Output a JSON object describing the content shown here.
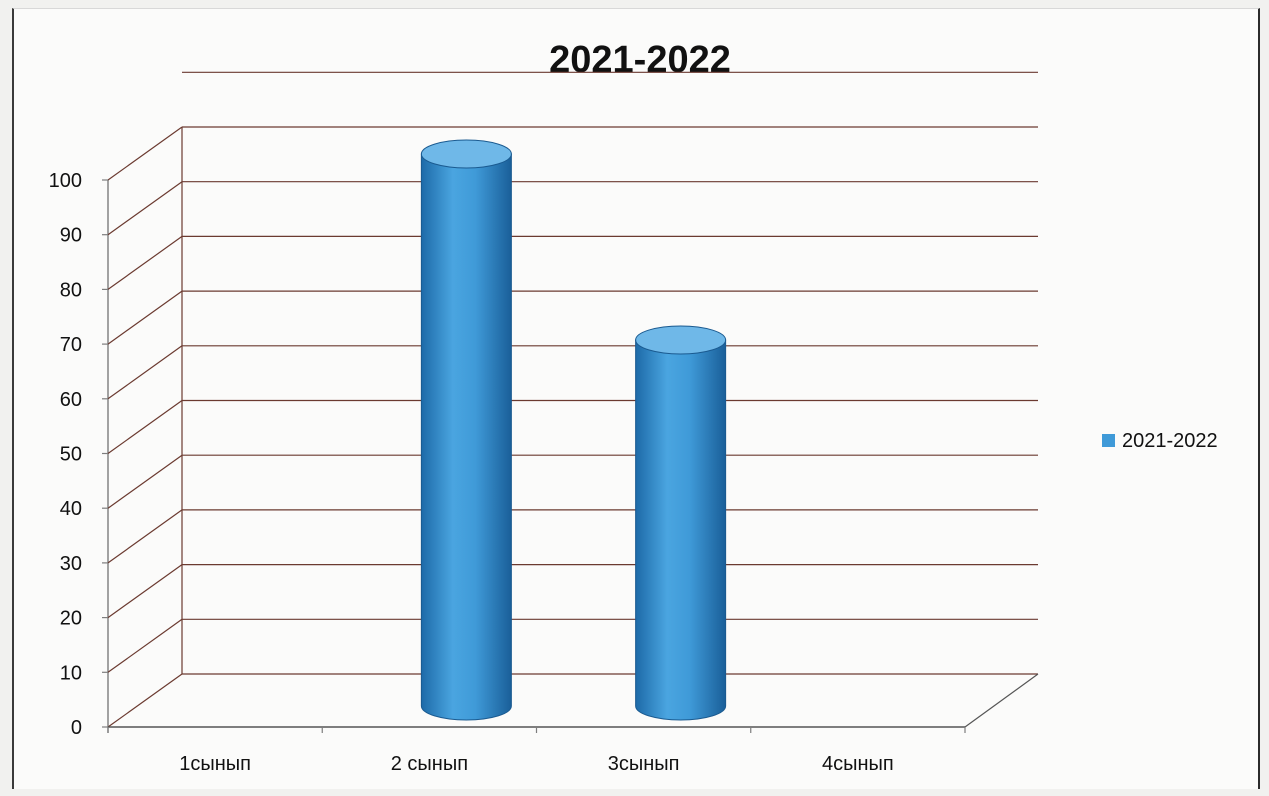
{
  "chart_data": {
    "type": "bar",
    "style": "3d-cylinder",
    "title": "2021-2022",
    "categories": [
      "1сынып",
      "2 сынып",
      "3сынып",
      "4сынып"
    ],
    "series": [
      {
        "name": "2021-2022",
        "values": [
          0,
          100,
          66,
          0
        ]
      }
    ],
    "ylim": [
      0,
      100
    ],
    "yticks": [
      "0",
      "10",
      "20",
      "30",
      "40",
      "50",
      "60",
      "70",
      "80",
      "90",
      "100"
    ],
    "grid": true,
    "legend_position": "right",
    "colors": {
      "bar": "#3f9ad8",
      "bar_dark": "#1d6aa8",
      "bar_light": "#6fb8e8",
      "grid": "#6b3a30"
    }
  }
}
